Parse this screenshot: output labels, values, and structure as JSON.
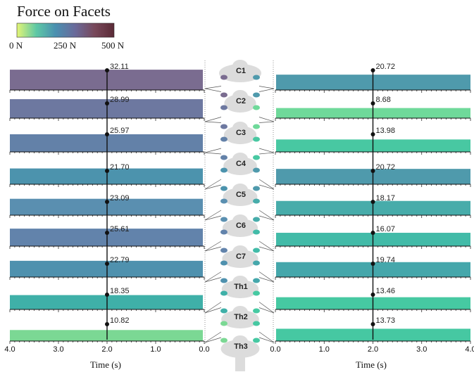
{
  "title": "Force on Facets",
  "colorbar": {
    "labels": [
      "0 N",
      "250 N",
      "500 N"
    ],
    "colors": [
      "#e3f576",
      "#5dc8a5",
      "#4a8fb0",
      "#6a6a9a",
      "#78485a",
      "#5a2a36"
    ]
  },
  "chart_data": {
    "type": "line",
    "levels": [
      "C1",
      "C2",
      "C3",
      "C4",
      "C5",
      "C6",
      "C7",
      "Th1",
      "Th2",
      "Th3"
    ],
    "xlim": [
      0,
      4.0
    ],
    "x_ticks": [
      "4.0",
      "3.0",
      "2.0",
      "1.0",
      "0.0",
      "0.0",
      "1.0",
      "2.0",
      "3.0",
      "4.0"
    ],
    "xlabel": "Time (s)",
    "marker_time": 2.0,
    "left_panel": {
      "x_direction": "reversed",
      "joints": [
        {
          "label": "32.11",
          "value": 32.11,
          "color": "#7a6c90"
        },
        {
          "label": "28.99",
          "value": 28.99,
          "color": "#6d78a0"
        },
        {
          "label": "25.97",
          "value": 25.97,
          "color": "#6381a8"
        },
        {
          "label": "21.70",
          "value": 21.7,
          "color": "#4c93ad"
        },
        {
          "label": "23.09",
          "value": 23.09,
          "color": "#5a8fb0"
        },
        {
          "label": "25.61",
          "value": 25.61,
          "color": "#6283ab"
        },
        {
          "label": "22.79",
          "value": 22.79,
          "color": "#4f91ae"
        },
        {
          "label": "18.35",
          "value": 18.35,
          "color": "#3fb0a8"
        },
        {
          "label": "10.82",
          "value": 10.82,
          "color": "#7bd894"
        }
      ]
    },
    "right_panel": {
      "x_direction": "normal",
      "joints": [
        {
          "label": "20.72",
          "value": 20.72,
          "color": "#4f9aac"
        },
        {
          "label": "8.68",
          "value": 8.68,
          "color": "#6fd99a"
        },
        {
          "label": "13.98",
          "value": 13.98,
          "color": "#48c8a2"
        },
        {
          "label": "20.72",
          "value": 20.72,
          "color": "#4f9aac"
        },
        {
          "label": "18.17",
          "value": 18.17,
          "color": "#47acaa"
        },
        {
          "label": "16.07",
          "value": 16.07,
          "color": "#42bba8"
        },
        {
          "label": "19.74",
          "value": 19.74,
          "color": "#45a7ab"
        },
        {
          "label": "13.46",
          "value": 13.46,
          "color": "#46c9a2"
        },
        {
          "label": "13.73",
          "value": 13.73,
          "color": "#46c8a2"
        }
      ]
    }
  }
}
